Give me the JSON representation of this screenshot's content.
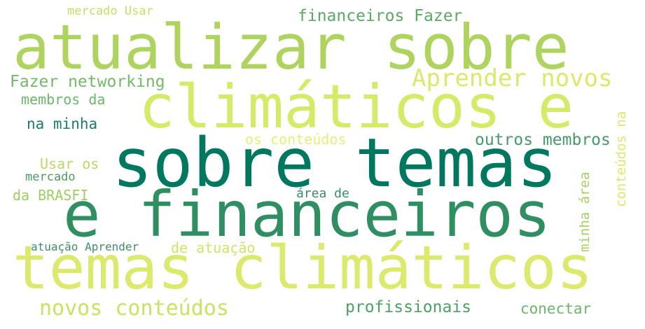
{
  "words": [
    {
      "text": "sobre temas",
      "color": "#00785f"
    },
    {
      "text": "e financeiros",
      "color": "#2f8f62"
    },
    {
      "text": "temas climáticos",
      "color": "#dbe96c"
    },
    {
      "text": "atualizar sobre",
      "color": "#aed45f"
    },
    {
      "text": "climáticos e",
      "color": "#d6ea6a"
    },
    {
      "text": "Aprender novos",
      "color": "#d9ea6b"
    },
    {
      "text": "novos conteúdos",
      "color": "#c8e262"
    },
    {
      "text": "Fazer networking",
      "color": "#73b967"
    },
    {
      "text": "financeiros Fazer",
      "color": "#5da866"
    },
    {
      "text": "profissionais",
      "color": "#50a065"
    },
    {
      "text": "outros membros",
      "color": "#47996a"
    },
    {
      "text": "membros da",
      "color": "#6db76a"
    },
    {
      "text": "na minha",
      "color": "#1b7c68"
    },
    {
      "text": "mercado Usar",
      "color": "#c3df64"
    },
    {
      "text": "Usar os",
      "color": "#b9d962"
    },
    {
      "text": "mercado",
      "color": "#4d9a62"
    },
    {
      "text": "da BRASFI",
      "color": "#9ecd62"
    },
    {
      "text": "os conteúdos",
      "color": "#e7ed78"
    },
    {
      "text": "área de",
      "color": "#3a8d64"
    },
    {
      "text": "atuação Aprender",
      "color": "#3f8f66"
    },
    {
      "text": "de atuação",
      "color": "#cde466"
    },
    {
      "text": "conectar",
      "color": "#6db56b"
    },
    {
      "text": "minha área",
      "color": "#a6d162"
    },
    {
      "text": "conteúdos na",
      "color": "#dce96d"
    }
  ]
}
